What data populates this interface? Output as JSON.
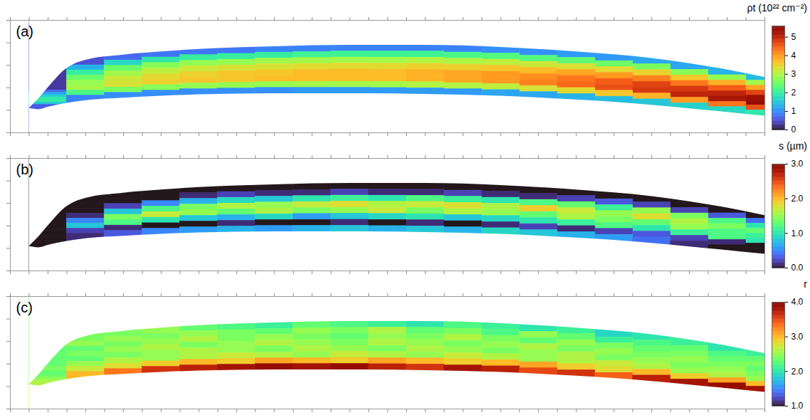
{
  "chart_data": [
    {
      "type": "heatmap",
      "panel": "(a)",
      "colorbar_label": "ρt (10²² cm⁻²)",
      "color": "turbo",
      "colorbar_range": [
        0,
        5.6
      ],
      "colorbar_ticks": [
        0,
        1,
        2,
        3,
        4,
        5
      ],
      "xlim": [
        0,
        40
      ],
      "ylim": [
        0,
        5
      ],
      "xticks": [
        0,
        1,
        2,
        3,
        4,
        5,
        6,
        7,
        8,
        9,
        10,
        11,
        12,
        13,
        14,
        15,
        16,
        17,
        18,
        19,
        20,
        21,
        22,
        23,
        24,
        25,
        26,
        27,
        28,
        29,
        30,
        31,
        32,
        33,
        34,
        35,
        36,
        37,
        38,
        39,
        40
      ],
      "yticks": [
        0,
        1,
        2,
        3,
        4,
        5
      ],
      "tick_labels": false,
      "grid": false,
      "outline": {
        "x": [
          1,
          1.5,
          2,
          3,
          4,
          6,
          8,
          10,
          14,
          18,
          22,
          26,
          30,
          34,
          38,
          40
        ],
        "top": [
          1.09,
          1.51,
          2.0,
          2.86,
          3.23,
          3.46,
          3.6,
          3.71,
          3.83,
          3.89,
          3.89,
          3.8,
          3.6,
          3.31,
          2.8,
          2.46
        ],
        "bottom": [
          1.09,
          1.03,
          1.14,
          1.31,
          1.43,
          1.54,
          1.63,
          1.69,
          1.74,
          1.74,
          1.71,
          1.63,
          1.46,
          1.23,
          0.91,
          0.74
        ]
      },
      "columns": [
        1,
        3,
        5,
        7,
        9,
        11,
        13,
        15,
        17,
        19,
        21,
        23,
        25,
        27,
        29,
        31,
        33,
        35,
        37,
        39,
        40
      ],
      "cells": [
        [
          0.3,
          0.5,
          0.7,
          0.8,
          0.8,
          0.8,
          0.9,
          0.9,
          0.9,
          0.9,
          0.9,
          0.9,
          1.0,
          1.0,
          1.1,
          1.1,
          1.2,
          1.2,
          1.3,
          1.4
        ],
        [
          0.7,
          1.3,
          1.7,
          1.9,
          2.0,
          2.0,
          2.0,
          2.1,
          2.1,
          2.1,
          2.1,
          2.2,
          2.3,
          2.3,
          2.4,
          2.5,
          2.6,
          2.7,
          2.8,
          2.9
        ],
        [
          1.2,
          2.0,
          2.5,
          2.7,
          2.8,
          2.8,
          2.9,
          2.9,
          2.9,
          2.9,
          3.0,
          3.0,
          3.1,
          3.2,
          3.3,
          3.4,
          3.5,
          3.6,
          3.8,
          3.9
        ],
        [
          1.6,
          2.5,
          2.9,
          3.1,
          3.2,
          3.3,
          3.3,
          3.4,
          3.4,
          3.4,
          3.5,
          3.5,
          3.6,
          3.7,
          3.9,
          4.0,
          4.2,
          4.3,
          4.5,
          4.7
        ],
        [
          1.9,
          2.8,
          3.2,
          3.4,
          3.5,
          3.6,
          3.6,
          3.7,
          3.7,
          3.7,
          3.8,
          3.9,
          4.0,
          4.1,
          4.3,
          4.5,
          4.7,
          4.8,
          5.0,
          5.3
        ],
        [
          2.0,
          2.9,
          3.3,
          3.5,
          3.6,
          3.6,
          3.7,
          3.7,
          3.7,
          3.7,
          3.8,
          3.9,
          4.0,
          4.2,
          4.4,
          4.6,
          4.8,
          5.0,
          5.2,
          5.4
        ],
        [
          1.5,
          2.2,
          2.6,
          2.7,
          2.8,
          2.8,
          2.8,
          2.9,
          2.9,
          2.9,
          3.0,
          3.0,
          3.1,
          3.3,
          3.4,
          3.6,
          3.8,
          4.0,
          4.3,
          4.6
        ],
        [
          0.6,
          0.9,
          1.0,
          1.0,
          1.0,
          1.0,
          1.0,
          1.1,
          1.1,
          1.1,
          1.1,
          1.1,
          1.2,
          1.2,
          1.3,
          1.4,
          1.5,
          1.6,
          1.7,
          1.9
        ]
      ]
    },
    {
      "type": "heatmap",
      "panel": "(b)",
      "colorbar_label": "s (µm)",
      "color": "turbo",
      "colorbar_range": [
        0,
        3
      ],
      "colorbar_ticks": [
        {
          "value": 0,
          "label": "0.0"
        },
        {
          "value": 1,
          "label": "1.0"
        },
        {
          "value": 2,
          "label": "2.0"
        },
        {
          "value": 3,
          "label": "3.0"
        }
      ],
      "xlim": [
        0,
        40
      ],
      "ylim": [
        0,
        5
      ],
      "xticks": [
        0,
        1,
        2,
        3,
        4,
        5,
        6,
        7,
        8,
        9,
        10,
        11,
        12,
        13,
        14,
        15,
        16,
        17,
        18,
        19,
        20,
        21,
        22,
        23,
        24,
        25,
        26,
        27,
        28,
        29,
        30,
        31,
        32,
        33,
        34,
        35,
        36,
        37,
        38,
        39,
        40
      ],
      "yticks": [
        0,
        1,
        2,
        3,
        4,
        5
      ],
      "tick_labels": false,
      "grid": false,
      "outline": {
        "x": [
          1,
          1.5,
          2,
          3,
          4,
          6,
          8,
          10,
          14,
          18,
          22,
          26,
          30,
          34,
          38,
          40
        ],
        "top": [
          1.09,
          1.51,
          2.0,
          2.86,
          3.23,
          3.46,
          3.6,
          3.71,
          3.83,
          3.89,
          3.89,
          3.8,
          3.6,
          3.31,
          2.8,
          2.46
        ],
        "bottom": [
          1.09,
          1.03,
          1.14,
          1.31,
          1.43,
          1.54,
          1.63,
          1.69,
          1.74,
          1.74,
          1.71,
          1.63,
          1.46,
          1.23,
          0.91,
          0.74
        ]
      },
      "columns": [
        1,
        3,
        5,
        7,
        9,
        11,
        13,
        15,
        17,
        19,
        21,
        23,
        25,
        27,
        29,
        31,
        33,
        35,
        37,
        39,
        40
      ],
      "cells": [
        [
          0,
          0,
          0,
          0,
          0,
          0,
          0,
          0,
          0,
          0,
          0,
          0,
          0,
          0,
          0,
          0,
          0,
          0,
          0,
          0
        ],
        [
          0,
          0,
          0,
          0,
          0.1,
          0.2,
          0.1,
          0.1,
          0.2,
          0.1,
          0.1,
          0.2,
          0.1,
          0.1,
          0.2,
          0.3,
          0.2,
          0.2,
          0.3,
          0.4
        ],
        [
          0,
          0,
          0.2,
          0.5,
          0.7,
          0.9,
          0.8,
          1.0,
          1.1,
          1.0,
          1.2,
          1.1,
          1.0,
          1.2,
          1.3,
          1.1,
          1.5,
          1.4,
          1.2,
          1.0
        ],
        [
          0,
          0.1,
          0.8,
          1.2,
          1.4,
          1.6,
          1.5,
          1.7,
          1.8,
          1.6,
          1.7,
          1.8,
          1.6,
          1.9,
          1.7,
          1.5,
          1.8,
          1.6,
          1.4,
          1.3
        ],
        [
          0,
          0.5,
          1.4,
          1.7,
          1.5,
          1.3,
          1.6,
          1.4,
          1.5,
          1.7,
          1.4,
          1.6,
          1.5,
          1.3,
          1.6,
          1.4,
          1.3,
          1.5,
          1.2,
          1.1
        ],
        [
          0,
          0.8,
          1.2,
          1.0,
          0.8,
          0.7,
          0.9,
          0.6,
          0.8,
          0.9,
          1.0,
          0.8,
          0.9,
          1.0,
          1.1,
          1.2,
          1.0,
          1.1,
          1.2,
          1.0
        ],
        [
          0,
          0.2,
          0.1,
          0,
          0,
          0.1,
          0,
          0,
          0.1,
          0,
          0.1,
          0,
          0.1,
          0.2,
          0.1,
          0.2,
          0.3,
          0.2,
          0.1,
          0
        ],
        [
          0,
          0.1,
          0.3,
          0.5,
          0.6,
          0.7,
          0.6,
          0.7,
          0.8,
          0.7,
          0.8,
          0.7,
          0.9,
          0.8,
          0.7,
          0.6,
          0.4,
          0.1,
          0,
          0
        ]
      ]
    },
    {
      "type": "heatmap",
      "panel": "(c)",
      "colorbar_label": "r",
      "color": "turbo",
      "colorbar_range": [
        1,
        4
      ],
      "colorbar_ticks": [
        {
          "value": 1,
          "label": "1.0"
        },
        {
          "value": 2,
          "label": "2.0"
        },
        {
          "value": 3,
          "label": "3.0"
        },
        {
          "value": 4,
          "label": "4.0"
        }
      ],
      "xlim": [
        0,
        40
      ],
      "ylim": [
        0,
        5
      ],
      "xticks": [
        0,
        1,
        2,
        3,
        4,
        5,
        6,
        7,
        8,
        9,
        10,
        11,
        12,
        13,
        14,
        15,
        16,
        17,
        18,
        19,
        20,
        21,
        22,
        23,
        24,
        25,
        26,
        27,
        28,
        29,
        30,
        31,
        32,
        33,
        34,
        35,
        36,
        37,
        38,
        39,
        40
      ],
      "yticks": [
        0,
        1,
        2,
        3,
        4,
        5
      ],
      "tick_labels": false,
      "grid": false,
      "outline": {
        "x": [
          1,
          1.5,
          2,
          3,
          4,
          6,
          8,
          10,
          14,
          18,
          22,
          26,
          30,
          34,
          38,
          40
        ],
        "top": [
          1.09,
          1.51,
          2.0,
          2.86,
          3.23,
          3.46,
          3.6,
          3.71,
          3.83,
          3.89,
          3.89,
          3.8,
          3.6,
          3.31,
          2.8,
          2.46
        ],
        "bottom": [
          1.09,
          1.03,
          1.14,
          1.31,
          1.43,
          1.54,
          1.63,
          1.69,
          1.74,
          1.74,
          1.71,
          1.63,
          1.46,
          1.23,
          0.91,
          0.74
        ]
      },
      "columns": [
        1,
        3,
        5,
        7,
        9,
        11,
        13,
        15,
        17,
        19,
        21,
        23,
        25,
        27,
        29,
        31,
        33,
        35,
        37,
        39,
        40
      ],
      "cells": [
        [
          2.3,
          2.4,
          2.4,
          2.5,
          2.3,
          2.2,
          2.1,
          2.3,
          2.2,
          2.1,
          2.0,
          2.2,
          2.1,
          2.0,
          2.1,
          1.9,
          2.0,
          2.1,
          2.0,
          2.1
        ],
        [
          2.4,
          2.5,
          2.5,
          2.4,
          2.5,
          2.4,
          2.3,
          2.5,
          2.4,
          2.6,
          2.3,
          2.4,
          2.2,
          2.5,
          2.3,
          2.1,
          2.2,
          2.3,
          2.2,
          2.3
        ],
        [
          2.4,
          2.3,
          2.4,
          2.5,
          2.6,
          2.4,
          2.5,
          2.4,
          2.3,
          2.5,
          2.4,
          2.6,
          2.4,
          2.3,
          2.5,
          2.4,
          2.3,
          2.4,
          2.3,
          2.4
        ],
        [
          2.3,
          2.4,
          2.5,
          2.6,
          2.4,
          2.5,
          2.6,
          2.5,
          2.4,
          2.6,
          2.5,
          2.4,
          2.5,
          2.6,
          2.4,
          2.5,
          2.4,
          2.5,
          2.4,
          2.3
        ],
        [
          2.3,
          2.3,
          2.4,
          2.5,
          2.6,
          2.5,
          2.4,
          2.6,
          2.5,
          2.4,
          2.6,
          2.5,
          2.4,
          2.5,
          2.6,
          2.4,
          2.5,
          2.4,
          2.5,
          2.4
        ],
        [
          2.4,
          2.5,
          2.6,
          2.5,
          2.6,
          2.7,
          2.6,
          2.5,
          2.7,
          2.6,
          2.5,
          2.7,
          2.6,
          2.5,
          2.6,
          2.7,
          2.6,
          2.5,
          2.6,
          2.5
        ],
        [
          2.5,
          2.7,
          2.8,
          2.9,
          3.0,
          2.9,
          3.1,
          3.0,
          2.9,
          3.1,
          3.0,
          2.9,
          3.0,
          3.1,
          2.9,
          2.8,
          3.0,
          2.9,
          3.1,
          3.0
        ],
        [
          2.6,
          3.0,
          3.3,
          3.6,
          3.7,
          3.8,
          3.9,
          3.8,
          3.9,
          3.7,
          3.6,
          3.8,
          3.7,
          3.5,
          3.6,
          3.4,
          3.7,
          3.8,
          3.9,
          3.8
        ]
      ]
    }
  ]
}
